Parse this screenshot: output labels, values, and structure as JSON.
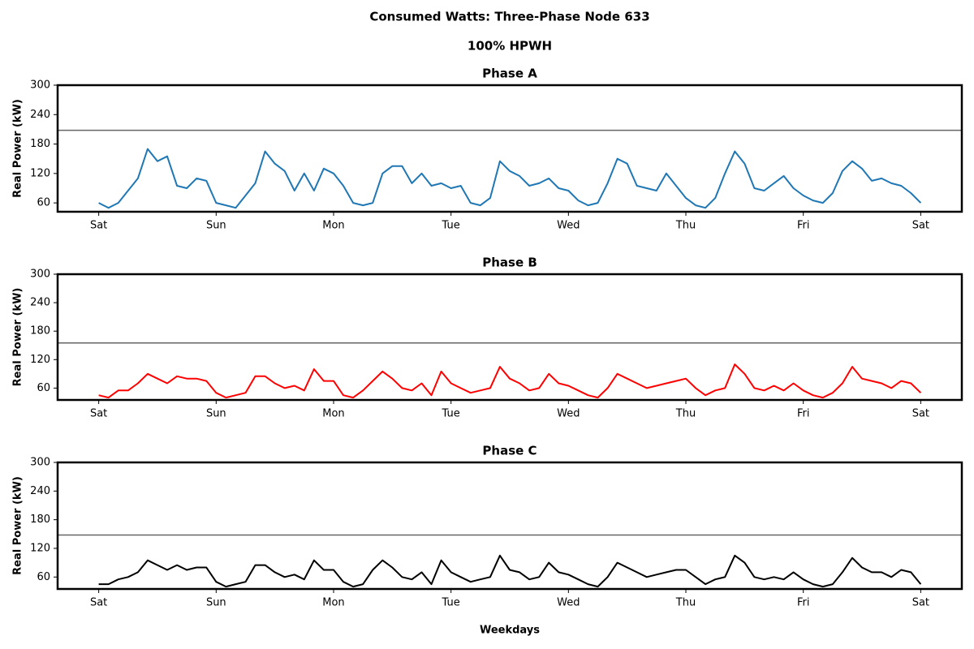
{
  "title": "Consumed Watts: Three-Phase Node 633",
  "subtitle": "100% HPWH",
  "xlabel": "Weekdays",
  "chart_data": [
    {
      "type": "line",
      "title": "Phase A",
      "ylabel": "Real Power (kW)",
      "x": [
        0,
        2,
        4,
        6,
        8,
        10,
        12,
        14,
        16,
        18,
        20,
        22,
        24,
        26,
        28,
        30,
        32,
        34,
        36,
        38,
        40,
        42,
        44,
        46,
        48,
        50,
        52,
        54,
        56,
        58,
        60,
        62,
        64,
        66,
        68,
        70,
        72,
        74,
        76,
        78,
        80,
        82,
        84,
        86,
        88,
        90,
        92,
        94,
        96,
        98,
        100,
        102,
        104,
        106,
        108,
        110,
        112,
        114,
        116,
        118,
        120,
        122,
        124,
        126,
        128,
        130,
        132,
        134,
        136,
        138,
        140,
        142,
        144,
        146,
        148,
        150,
        152,
        154,
        156,
        158,
        160,
        162,
        164,
        166,
        168
      ],
      "series": [
        {
          "color": "#1f77b4",
          "values": [
            60,
            50,
            60,
            85,
            110,
            170,
            145,
            155,
            95,
            90,
            110,
            105,
            60,
            55,
            50,
            75,
            100,
            165,
            140,
            125,
            85,
            120,
            85,
            130,
            120,
            95,
            60,
            55,
            60,
            120,
            135,
            135,
            100,
            120,
            95,
            100,
            90,
            95,
            60,
            55,
            70,
            145,
            125,
            115,
            95,
            100,
            110,
            90,
            85,
            65,
            55,
            60,
            100,
            150,
            140,
            95,
            90,
            85,
            120,
            95,
            70,
            55,
            50,
            70,
            120,
            165,
            140,
            90,
            85,
            100,
            115,
            90,
            75,
            65,
            60,
            80,
            125,
            145,
            130,
            105,
            110,
            100,
            95,
            80,
            60
          ]
        }
      ],
      "hline": {
        "value": 208,
        "color": "#666666"
      },
      "xlim": [
        -8.4,
        176.4
      ],
      "xticks": [
        {
          "value": 0,
          "label": "Sat"
        },
        {
          "value": 24,
          "label": "Sun"
        },
        {
          "value": 48,
          "label": "Mon"
        },
        {
          "value": 72,
          "label": "Tue"
        },
        {
          "value": 96,
          "label": "Wed"
        },
        {
          "value": 120,
          "label": "Thu"
        },
        {
          "value": 144,
          "label": "Fri"
        },
        {
          "value": 168,
          "label": "Sat"
        }
      ],
      "ylim": [
        42,
        300
      ],
      "yticks": [
        60,
        120,
        180,
        240,
        300
      ],
      "grid": false
    },
    {
      "type": "line",
      "title": "Phase B",
      "ylabel": "Real Power (kW)",
      "x": [
        0,
        2,
        4,
        6,
        8,
        10,
        12,
        14,
        16,
        18,
        20,
        22,
        24,
        26,
        28,
        30,
        32,
        34,
        36,
        38,
        40,
        42,
        44,
        46,
        48,
        50,
        52,
        54,
        56,
        58,
        60,
        62,
        64,
        66,
        68,
        70,
        72,
        74,
        76,
        78,
        80,
        82,
        84,
        86,
        88,
        90,
        92,
        94,
        96,
        98,
        100,
        102,
        104,
        106,
        108,
        110,
        112,
        114,
        116,
        118,
        120,
        122,
        124,
        126,
        128,
        130,
        132,
        134,
        136,
        138,
        140,
        142,
        144,
        146,
        148,
        150,
        152,
        154,
        156,
        158,
        160,
        162,
        164,
        166,
        168
      ],
      "series": [
        {
          "color": "#ff0000",
          "values": [
            45,
            40,
            55,
            55,
            70,
            90,
            80,
            70,
            85,
            80,
            80,
            75,
            50,
            40,
            45,
            50,
            85,
            85,
            70,
            60,
            65,
            55,
            100,
            75,
            75,
            45,
            40,
            55,
            75,
            95,
            80,
            60,
            55,
            70,
            45,
            95,
            70,
            60,
            50,
            55,
            60,
            105,
            80,
            70,
            55,
            60,
            90,
            70,
            65,
            55,
            45,
            40,
            60,
            90,
            80,
            70,
            60,
            65,
            70,
            75,
            80,
            60,
            45,
            55,
            60,
            110,
            90,
            60,
            55,
            65,
            55,
            70,
            55,
            45,
            40,
            50,
            70,
            105,
            80,
            75,
            70,
            60,
            75,
            70,
            50
          ]
        }
      ],
      "hline": {
        "value": 155,
        "color": "#666666"
      },
      "xlim": [
        -8.4,
        176.4
      ],
      "xticks": [
        {
          "value": 0,
          "label": "Sat"
        },
        {
          "value": 24,
          "label": "Sun"
        },
        {
          "value": 48,
          "label": "Mon"
        },
        {
          "value": 72,
          "label": "Tue"
        },
        {
          "value": 96,
          "label": "Wed"
        },
        {
          "value": 120,
          "label": "Thu"
        },
        {
          "value": 144,
          "label": "Fri"
        },
        {
          "value": 168,
          "label": "Sat"
        }
      ],
      "ylim": [
        35,
        300
      ],
      "yticks": [
        60,
        120,
        180,
        240,
        300
      ],
      "grid": false
    },
    {
      "type": "line",
      "title": "Phase C",
      "ylabel": "Real Power (kW)",
      "x": [
        0,
        2,
        4,
        6,
        8,
        10,
        12,
        14,
        16,
        18,
        20,
        22,
        24,
        26,
        28,
        30,
        32,
        34,
        36,
        38,
        40,
        42,
        44,
        46,
        48,
        50,
        52,
        54,
        56,
        58,
        60,
        62,
        64,
        66,
        68,
        70,
        72,
        74,
        76,
        78,
        80,
        82,
        84,
        86,
        88,
        90,
        92,
        94,
        96,
        98,
        100,
        102,
        104,
        106,
        108,
        110,
        112,
        114,
        116,
        118,
        120,
        122,
        124,
        126,
        128,
        130,
        132,
        134,
        136,
        138,
        140,
        142,
        144,
        146,
        148,
        150,
        152,
        154,
        156,
        158,
        160,
        162,
        164,
        166,
        168
      ],
      "series": [
        {
          "color": "#000000",
          "values": [
            45,
            45,
            55,
            60,
            70,
            95,
            85,
            75,
            85,
            75,
            80,
            80,
            50,
            40,
            45,
            50,
            85,
            85,
            70,
            60,
            65,
            55,
            95,
            75,
            75,
            50,
            40,
            45,
            75,
            95,
            80,
            60,
            55,
            70,
            45,
            95,
            70,
            60,
            50,
            55,
            60,
            105,
            75,
            70,
            55,
            60,
            90,
            70,
            65,
            55,
            45,
            40,
            60,
            90,
            80,
            70,
            60,
            65,
            70,
            75,
            75,
            60,
            45,
            55,
            60,
            105,
            90,
            60,
            55,
            60,
            55,
            70,
            55,
            45,
            40,
            45,
            70,
            100,
            80,
            70,
            70,
            60,
            75,
            70,
            45
          ]
        }
      ],
      "hline": {
        "value": 148,
        "color": "#666666"
      },
      "xlim": [
        -8.4,
        176.4
      ],
      "xticks": [
        {
          "value": 0,
          "label": "Sat"
        },
        {
          "value": 24,
          "label": "Sun"
        },
        {
          "value": 48,
          "label": "Mon"
        },
        {
          "value": 72,
          "label": "Tue"
        },
        {
          "value": 96,
          "label": "Wed"
        },
        {
          "value": 120,
          "label": "Thu"
        },
        {
          "value": 144,
          "label": "Fri"
        },
        {
          "value": 168,
          "label": "Sat"
        }
      ],
      "ylim": [
        35,
        300
      ],
      "yticks": [
        60,
        120,
        180,
        240,
        300
      ],
      "grid": false
    }
  ]
}
